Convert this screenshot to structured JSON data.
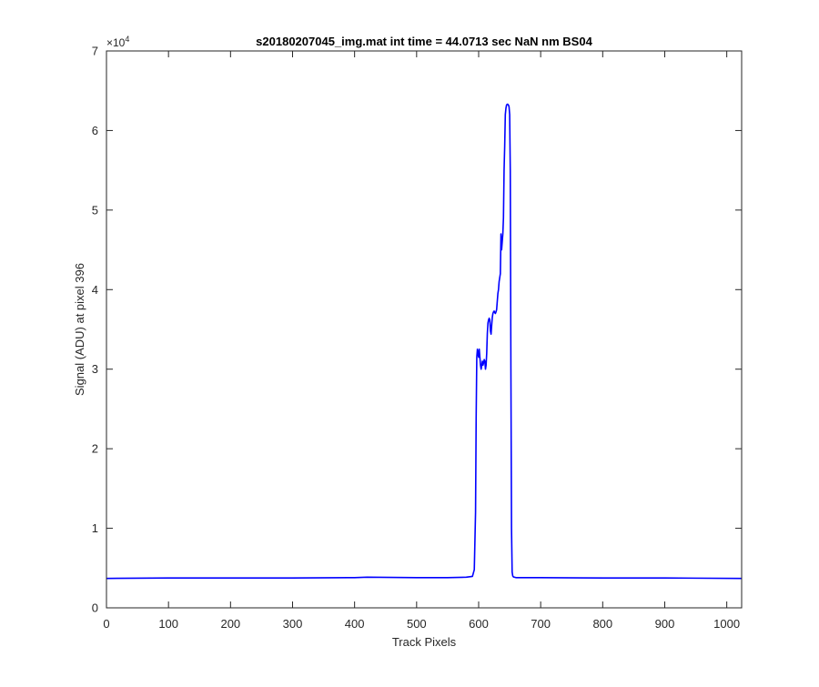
{
  "chart_data": {
    "type": "line",
    "title": "s20180207045_img.mat int time = 44.0713 sec  NaN nm BS04",
    "xlabel": "Track Pixels",
    "ylabel": "Signal (ADU) at pixel 396",
    "xlim": [
      0,
      1024
    ],
    "ylim": [
      0,
      70000
    ],
    "y_exponent_label": "×10",
    "y_exponent_power": "4",
    "x_ticks": [
      0,
      100,
      200,
      300,
      400,
      500,
      600,
      700,
      800,
      900,
      1000
    ],
    "x_tick_labels": [
      "0",
      "100",
      "200",
      "300",
      "400",
      "500",
      "600",
      "700",
      "800",
      "900",
      "1000"
    ],
    "y_ticks": [
      0,
      10000,
      20000,
      30000,
      40000,
      50000,
      60000,
      70000
    ],
    "y_tick_labels": [
      "0",
      "1",
      "2",
      "3",
      "4",
      "5",
      "6",
      "7"
    ],
    "grid": false,
    "line_color": "#0000ff",
    "series": [
      {
        "x": [
          0,
          100,
          200,
          300,
          400,
          420,
          500,
          550,
          580,
          590,
          593,
          595,
          596,
          597,
          598,
          599,
          600,
          601,
          602,
          603,
          604,
          605,
          606,
          607,
          608,
          609,
          610,
          611,
          612,
          613,
          614,
          615,
          616,
          617,
          618,
          619,
          620,
          621,
          622,
          623,
          624,
          625,
          626,
          627,
          628,
          629,
          630,
          631,
          632,
          633,
          634,
          635,
          636,
          637,
          638,
          639,
          640,
          641,
          642,
          643,
          644,
          645,
          646,
          647,
          648,
          649,
          650,
          651,
          652,
          653,
          654,
          655,
          656,
          657,
          658,
          660,
          680,
          700,
          800,
          900,
          1024
        ],
        "y": [
          3700,
          3750,
          3750,
          3750,
          3800,
          3850,
          3800,
          3800,
          3850,
          3950,
          4800,
          12000,
          24000,
          31500,
          32500,
          32000,
          31500,
          32500,
          31500,
          30500,
          30000,
          30500,
          31000,
          30500,
          30800,
          31200,
          31000,
          30000,
          30500,
          32000,
          34500,
          35800,
          36200,
          36400,
          36200,
          34800,
          34400,
          35500,
          36500,
          37000,
          37200,
          37300,
          37100,
          37000,
          37200,
          37500,
          38500,
          39500,
          40000,
          41000,
          41500,
          42000,
          47000,
          45000,
          46000,
          47000,
          49000,
          55000,
          58000,
          62000,
          62800,
          63200,
          63300,
          63300,
          63200,
          63000,
          62000,
          55000,
          30000,
          10000,
          4500,
          4000,
          3900,
          3850,
          3850,
          3800,
          3800,
          3800,
          3750,
          3750,
          3700
        ]
      }
    ]
  }
}
